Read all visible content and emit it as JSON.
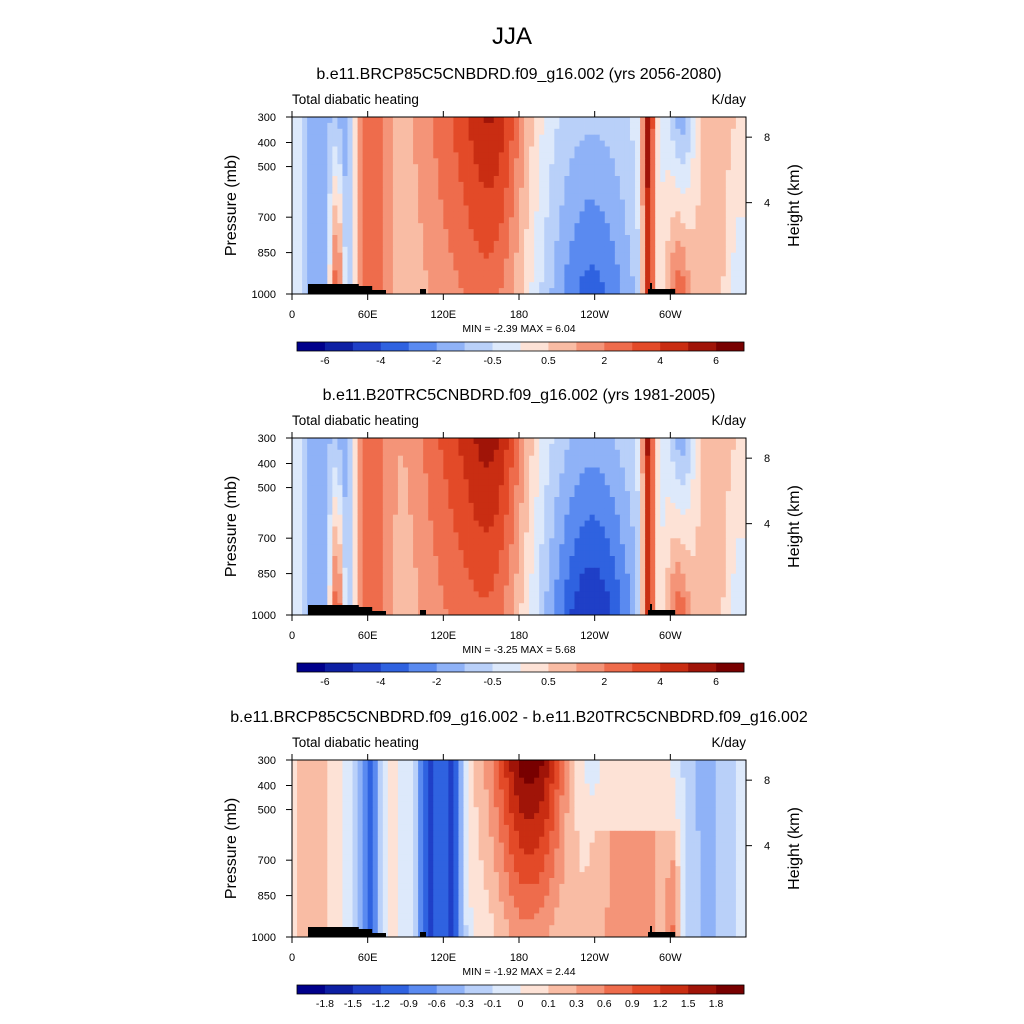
{
  "page_title": "JJA",
  "chart_data": [
    {
      "type": "heatmap",
      "title": "b.e11.BRCP85C5CNBDRD.f09_g16.002 (yrs 2056-2080)",
      "left_subtitle": "Total diabatic heating",
      "right_subtitle": "K/day",
      "ylabel": "Pressure (mb)",
      "ylabel_right": "Height (km)",
      "x_ticks": [
        "0",
        "60E",
        "120E",
        "180",
        "120W",
        "60W"
      ],
      "y_ticks": [
        "300",
        "400",
        "500",
        "700",
        "850",
        "1000"
      ],
      "y_ticks_right": [
        "8",
        "4"
      ],
      "min_max_label": "MIN =  -2.39  MAX =   6.04",
      "colorbar_labels": [
        "-6",
        "-4",
        "-2",
        "-0.5",
        "0.5",
        "2",
        "4",
        "6"
      ]
    },
    {
      "type": "heatmap",
      "title": "b.e11.B20TRC5CNBDRD.f09_g16.002 (yrs 1981-2005)",
      "left_subtitle": "Total diabatic heating",
      "right_subtitle": "K/day",
      "ylabel": "Pressure (mb)",
      "ylabel_right": "Height (km)",
      "x_ticks": [
        "0",
        "60E",
        "120E",
        "180",
        "120W",
        "60W"
      ],
      "y_ticks": [
        "300",
        "400",
        "500",
        "700",
        "850",
        "1000"
      ],
      "y_ticks_right": [
        "8",
        "4"
      ],
      "min_max_label": "MIN =  -3.25  MAX =   5.68",
      "colorbar_labels": [
        "-6",
        "-4",
        "-2",
        "-0.5",
        "0.5",
        "2",
        "4",
        "6"
      ]
    },
    {
      "type": "heatmap",
      "title": "b.e11.BRCP85C5CNBDRD.f09_g16.002 - b.e11.B20TRC5CNBDRD.f09_g16.002",
      "left_subtitle": "Total diabatic heating",
      "right_subtitle": "K/day",
      "ylabel": "Pressure (mb)",
      "ylabel_right": "Height (km)",
      "x_ticks": [
        "0",
        "60E",
        "120E",
        "180",
        "120W",
        "60W"
      ],
      "y_ticks": [
        "300",
        "400",
        "500",
        "700",
        "850",
        "1000"
      ],
      "y_ticks_right": [
        "8",
        "4"
      ],
      "min_max_label": "MIN =  -1.92  MAX =   2.44",
      "colorbar_labels": [
        "-1.8",
        "-1.5",
        "-1.2",
        "-0.9",
        "-0.6",
        "-0.3",
        "-0.1",
        "0",
        "0.1",
        "0.3",
        "0.6",
        "0.9",
        "1.2",
        "1.5",
        "1.8"
      ]
    }
  ],
  "colors": {
    "palette_16": [
      "#00008b",
      "#0d1fa3",
      "#1f3fc7",
      "#2f62e0",
      "#5a8af0",
      "#8fb2f7",
      "#b9d0f9",
      "#dde9fb",
      "#fde2d6",
      "#f9bca4",
      "#f49478",
      "#ee6c4c",
      "#e34a28",
      "#c92d12",
      "#a01408",
      "#780000"
    ],
    "terrain": "#000000"
  }
}
